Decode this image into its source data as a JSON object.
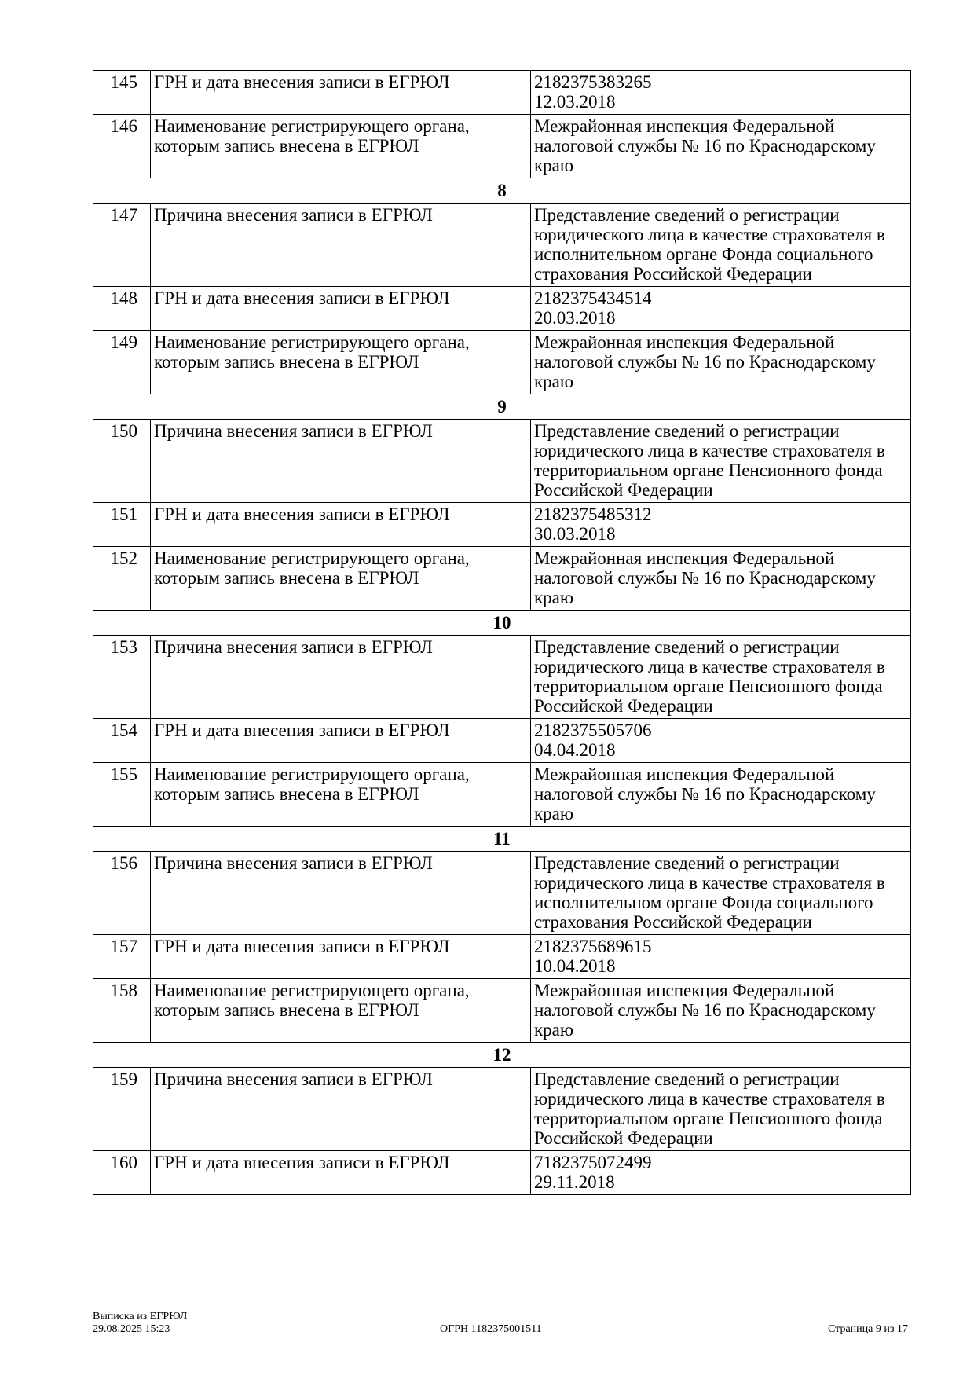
{
  "rows": [
    {
      "type": "row",
      "num": "145",
      "label": "ГРН и дата внесения записи в ЕГРЮЛ",
      "value": "2182375383265\n12.03.2018"
    },
    {
      "type": "row",
      "num": "146",
      "label": "Наименование регистрирующего органа, которым запись внесена в ЕГРЮЛ",
      "value": "Межрайонная инспекция Федеральной налоговой службы № 16 по Краснодарскому краю"
    },
    {
      "type": "section",
      "label": "8"
    },
    {
      "type": "row",
      "num": "147",
      "label": "Причина внесения записи в ЕГРЮЛ",
      "value": "Представление сведений о регистрации юридического лица в качестве страхователя в исполнительном органе Фонда социального страхования Российской Федерации"
    },
    {
      "type": "row",
      "num": "148",
      "label": "ГРН и дата внесения записи в ЕГРЮЛ",
      "value": "2182375434514\n20.03.2018"
    },
    {
      "type": "row",
      "num": "149",
      "label": "Наименование регистрирующего органа, которым запись внесена в ЕГРЮЛ",
      "value": "Межрайонная инспекция Федеральной налоговой службы № 16 по Краснодарскому краю"
    },
    {
      "type": "section",
      "label": "9"
    },
    {
      "type": "row",
      "num": "150",
      "label": "Причина внесения записи в ЕГРЮЛ",
      "value": "Представление сведений о регистрации юридического лица в качестве страхователя в территориальном органе Пенсионного фонда Российской Федерации"
    },
    {
      "type": "row",
      "num": "151",
      "label": "ГРН и дата внесения записи в ЕГРЮЛ",
      "value": "2182375485312\n30.03.2018"
    },
    {
      "type": "row",
      "num": "152",
      "label": "Наименование регистрирующего органа, которым запись внесена в ЕГРЮЛ",
      "value": "Межрайонная инспекция Федеральной налоговой службы № 16 по Краснодарскому краю"
    },
    {
      "type": "section",
      "label": "10"
    },
    {
      "type": "row",
      "num": "153",
      "label": "Причина внесения записи в ЕГРЮЛ",
      "value": "Представление сведений о регистрации юридического лица в качестве страхователя в территориальном органе Пенсионного фонда Российской Федерации"
    },
    {
      "type": "row",
      "num": "154",
      "label": "ГРН и дата внесения записи в ЕГРЮЛ",
      "value": "2182375505706\n04.04.2018"
    },
    {
      "type": "row",
      "num": "155",
      "label": "Наименование регистрирующего органа, которым запись внесена в ЕГРЮЛ",
      "value": "Межрайонная инспекция Федеральной налоговой службы № 16 по Краснодарскому краю"
    },
    {
      "type": "section",
      "label": "11"
    },
    {
      "type": "row",
      "num": "156",
      "label": "Причина внесения записи в ЕГРЮЛ",
      "value": "Представление сведений о регистрации юридического лица в качестве страхователя в исполнительном органе Фонда социального страхования Российской Федерации"
    },
    {
      "type": "row",
      "num": "157",
      "label": "ГРН и дата внесения записи в ЕГРЮЛ",
      "value": "2182375689615\n10.04.2018"
    },
    {
      "type": "row",
      "num": "158",
      "label": "Наименование регистрирующего органа, которым запись внесена в ЕГРЮЛ",
      "value": "Межрайонная инспекция Федеральной налоговой службы № 16 по Краснодарскому краю"
    },
    {
      "type": "section",
      "label": "12"
    },
    {
      "type": "row",
      "num": "159",
      "label": "Причина внесения записи в ЕГРЮЛ",
      "value": "Представление сведений о регистрации юридического лица в качестве страхователя в территориальном органе Пенсионного фонда Российской Федерации"
    },
    {
      "type": "row",
      "num": "160",
      "label": "ГРН и дата внесения записи в ЕГРЮЛ",
      "value": "7182375072499\n29.11.2018"
    }
  ],
  "footer": {
    "doc_title": "Выписка из ЕГРЮЛ",
    "datetime": "29.08.2025 15:23",
    "ogrn": "ОГРН 1182375001511",
    "page": "Страница 9 из 17"
  }
}
